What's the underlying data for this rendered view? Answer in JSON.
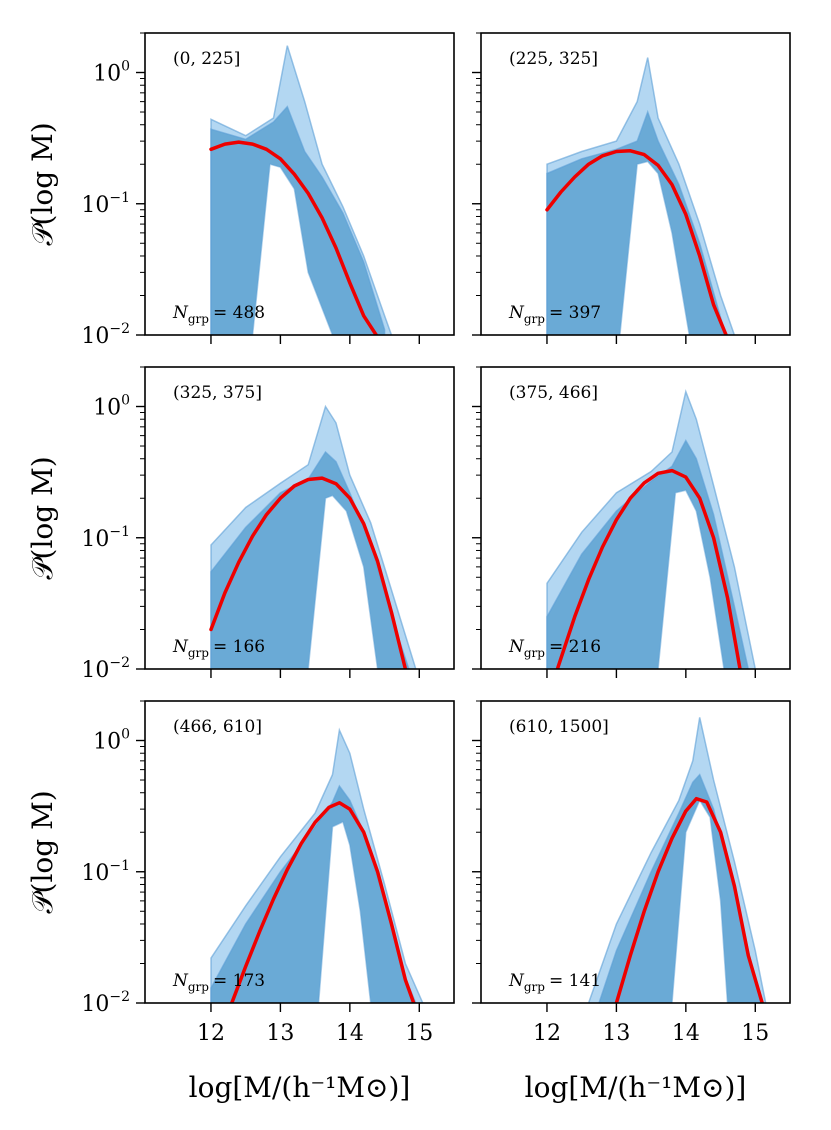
{
  "chart_data": {
    "type": "area",
    "layout": "3x2 grid of panels with shared x axis per column and shared y axis per row",
    "xlabel": "log[M/(h⁻¹M⊙)]",
    "ylabel": "𝒫(log M)",
    "xlim": [
      11.05,
      15.5
    ],
    "ylim": [
      0.01,
      2.0
    ],
    "yscale": "log",
    "xticks": [
      12,
      13,
      14,
      15
    ],
    "xtick_labels": [
      "12",
      "13",
      "14",
      "15"
    ],
    "yticks": [
      0.01,
      0.1,
      1.0
    ],
    "ytick_labels": [
      {
        "base": "10",
        "exp": "−2"
      },
      {
        "base": "10",
        "exp": "−1"
      },
      {
        "base": "10",
        "exp": "0"
      }
    ],
    "grid": false,
    "colors": {
      "outer_band": "#b3d7f2",
      "inner_band": "#6aaad6",
      "band_edge": "#5b9fd6",
      "fit_line": "#ee0000"
    },
    "panels": [
      {
        "range_label": "(0, 225]",
        "n_label": "N",
        "n_sub": "grp",
        "n_value": "= 488",
        "outer_band": {
          "x": [
            12.0,
            12.5,
            12.9,
            13.1,
            13.35,
            13.6,
            13.9,
            14.2,
            14.5,
            14.6
          ],
          "upper": [
            0.44,
            0.33,
            0.45,
            1.6,
            0.6,
            0.2,
            0.095,
            0.04,
            0.014,
            0.01
          ],
          "lower": [
            0.01,
            0.01,
            0.01,
            0.01,
            0.01,
            0.01,
            0.01,
            0.01,
            0.01,
            0.01
          ]
        },
        "inner_band": {
          "x": [
            12.0,
            12.5,
            12.9,
            13.1,
            13.35,
            13.6,
            13.9,
            14.2,
            14.5
          ],
          "upper": [
            0.37,
            0.31,
            0.42,
            0.55,
            0.25,
            0.16,
            0.085,
            0.036,
            0.011
          ],
          "lower": [
            0.01,
            0.01,
            0.01,
            0.01,
            0.01,
            0.01,
            0.01,
            0.01,
            0.01
          ]
        },
        "white_core": {
          "x": [
            12.6,
            12.85,
            13.0,
            13.2,
            13.4,
            13.75
          ],
          "upper": [
            0.01,
            0.2,
            0.19,
            0.13,
            0.03,
            0.01
          ]
        },
        "fit_line": {
          "x": [
            12.0,
            12.2,
            12.4,
            12.6,
            12.8,
            13.0,
            13.2,
            13.4,
            13.6,
            13.8,
            14.0,
            14.2,
            14.38
          ],
          "y": [
            0.26,
            0.285,
            0.295,
            0.285,
            0.26,
            0.22,
            0.168,
            0.12,
            0.078,
            0.046,
            0.025,
            0.014,
            0.01
          ]
        }
      },
      {
        "range_label": "(225, 325]",
        "n_label": "N",
        "n_sub": "grp",
        "n_value": "= 397",
        "outer_band": {
          "x": [
            12.0,
            12.5,
            13.0,
            13.3,
            13.45,
            13.6,
            13.9,
            14.2,
            14.5,
            14.7
          ],
          "upper": [
            0.2,
            0.25,
            0.3,
            0.6,
            1.3,
            0.45,
            0.2,
            0.07,
            0.02,
            0.01
          ],
          "lower": [
            0.01,
            0.01,
            0.01,
            0.01,
            0.01,
            0.01,
            0.01,
            0.01,
            0.01,
            0.01
          ]
        },
        "inner_band": {
          "x": [
            12.0,
            12.5,
            13.0,
            13.3,
            13.45,
            13.6,
            13.9,
            14.2,
            14.55
          ],
          "upper": [
            0.17,
            0.22,
            0.26,
            0.3,
            0.5,
            0.3,
            0.14,
            0.05,
            0.011
          ],
          "lower": [
            0.01,
            0.01,
            0.01,
            0.01,
            0.01,
            0.01,
            0.01,
            0.01,
            0.01
          ]
        },
        "white_core": {
          "x": [
            13.05,
            13.3,
            13.45,
            13.6,
            13.8,
            14.05
          ],
          "upper": [
            0.01,
            0.2,
            0.21,
            0.17,
            0.06,
            0.01
          ]
        },
        "fit_line": {
          "x": [
            12.0,
            12.2,
            12.4,
            12.6,
            12.8,
            13.0,
            13.2,
            13.4,
            13.6,
            13.8,
            14.0,
            14.2,
            14.4,
            14.58
          ],
          "y": [
            0.09,
            0.123,
            0.16,
            0.2,
            0.232,
            0.25,
            0.253,
            0.237,
            0.196,
            0.14,
            0.083,
            0.04,
            0.017,
            0.01
          ]
        }
      },
      {
        "range_label": "(325, 375]",
        "n_label": "N",
        "n_sub": "grp",
        "n_value": "= 166",
        "outer_band": {
          "x": [
            12.0,
            12.5,
            13.0,
            13.4,
            13.65,
            13.8,
            14.0,
            14.3,
            14.6,
            14.95
          ],
          "upper": [
            0.088,
            0.17,
            0.26,
            0.36,
            1.0,
            0.75,
            0.3,
            0.13,
            0.04,
            0.01
          ],
          "lower": [
            0.01,
            0.01,
            0.01,
            0.01,
            0.01,
            0.01,
            0.01,
            0.01,
            0.01,
            0.01
          ]
        },
        "inner_band": {
          "x": [
            12.0,
            12.5,
            13.0,
            13.4,
            13.65,
            13.8,
            14.0,
            14.3,
            14.6,
            14.85
          ],
          "upper": [
            0.055,
            0.12,
            0.22,
            0.28,
            0.45,
            0.38,
            0.22,
            0.09,
            0.025,
            0.01
          ],
          "lower": [
            0.01,
            0.01,
            0.01,
            0.01,
            0.01,
            0.01,
            0.01,
            0.01,
            0.01,
            0.01
          ]
        },
        "white_core": {
          "x": [
            13.4,
            13.65,
            13.75,
            13.95,
            14.2,
            14.4
          ],
          "upper": [
            0.01,
            0.2,
            0.21,
            0.16,
            0.06,
            0.01
          ]
        },
        "fit_line": {
          "x": [
            12.0,
            12.2,
            12.4,
            12.6,
            12.8,
            13.0,
            13.2,
            13.4,
            13.6,
            13.8,
            14.0,
            14.2,
            14.4,
            14.6,
            14.8
          ],
          "y": [
            0.02,
            0.038,
            0.065,
            0.103,
            0.15,
            0.2,
            0.248,
            0.278,
            0.285,
            0.258,
            0.2,
            0.128,
            0.066,
            0.027,
            0.01
          ]
        }
      },
      {
        "range_label": "(375, 466]",
        "n_label": "N",
        "n_sub": "grp",
        "n_value": "= 216",
        "outer_band": {
          "x": [
            12.0,
            12.5,
            13.0,
            13.5,
            13.8,
            14.0,
            14.15,
            14.4,
            14.7,
            15.0
          ],
          "upper": [
            0.045,
            0.11,
            0.22,
            0.32,
            0.45,
            1.3,
            0.8,
            0.25,
            0.06,
            0.01
          ],
          "lower": [
            0.01,
            0.01,
            0.01,
            0.01,
            0.01,
            0.01,
            0.01,
            0.01,
            0.01,
            0.01
          ]
        },
        "inner_band": {
          "x": [
            12.0,
            12.5,
            13.0,
            13.5,
            13.8,
            14.0,
            14.15,
            14.4,
            14.7,
            14.9
          ],
          "upper": [
            0.025,
            0.075,
            0.16,
            0.27,
            0.35,
            0.55,
            0.4,
            0.15,
            0.03,
            0.01
          ],
          "lower": [
            0.01,
            0.01,
            0.01,
            0.01,
            0.01,
            0.01,
            0.01,
            0.01,
            0.01,
            0.01
          ]
        },
        "white_core": {
          "x": [
            13.6,
            13.85,
            14.0,
            14.15,
            14.35,
            14.55
          ],
          "upper": [
            0.01,
            0.22,
            0.23,
            0.16,
            0.05,
            0.01
          ]
        },
        "fit_line": {
          "x": [
            12.15,
            12.4,
            12.6,
            12.8,
            13.0,
            13.2,
            13.4,
            13.6,
            13.8,
            14.0,
            14.2,
            14.4,
            14.6,
            14.78
          ],
          "y": [
            0.01,
            0.025,
            0.048,
            0.085,
            0.137,
            0.2,
            0.262,
            0.31,
            0.325,
            0.29,
            0.2,
            0.1,
            0.035,
            0.01
          ]
        }
      },
      {
        "range_label": "(466, 610]",
        "n_label": "N",
        "n_sub": "grp",
        "n_value": "= 173",
        "outer_band": {
          "x": [
            12.0,
            12.5,
            13.0,
            13.5,
            13.75,
            13.85,
            14.0,
            14.2,
            14.5,
            14.8,
            15.05
          ],
          "upper": [
            0.022,
            0.055,
            0.13,
            0.28,
            0.55,
            1.2,
            0.8,
            0.3,
            0.08,
            0.02,
            0.01
          ],
          "lower": [
            0.01,
            0.01,
            0.01,
            0.01,
            0.01,
            0.01,
            0.01,
            0.01,
            0.01,
            0.01,
            0.01
          ]
        },
        "inner_band": {
          "x": [
            12.0,
            12.5,
            13.0,
            13.5,
            13.75,
            13.85,
            14.0,
            14.2,
            14.5,
            14.75,
            14.95
          ],
          "upper": [
            0.013,
            0.04,
            0.1,
            0.22,
            0.34,
            0.45,
            0.35,
            0.2,
            0.06,
            0.018,
            0.01
          ],
          "lower": [
            0.01,
            0.01,
            0.01,
            0.01,
            0.01,
            0.01,
            0.01,
            0.01,
            0.01,
            0.01,
            0.01
          ]
        },
        "white_core": {
          "x": [
            13.55,
            13.75,
            13.9,
            14.0,
            14.15,
            14.3
          ],
          "upper": [
            0.01,
            0.22,
            0.24,
            0.16,
            0.05,
            0.01
          ]
        },
        "fit_line": {
          "x": [
            12.3,
            12.5,
            12.7,
            12.9,
            13.1,
            13.3,
            13.5,
            13.7,
            13.85,
            14.0,
            14.2,
            14.4,
            14.6,
            14.8,
            14.92
          ],
          "y": [
            0.01,
            0.019,
            0.035,
            0.062,
            0.104,
            0.164,
            0.238,
            0.31,
            0.335,
            0.3,
            0.2,
            0.1,
            0.04,
            0.015,
            0.01
          ]
        }
      },
      {
        "range_label": "(610, 1500]",
        "n_label": "N",
        "n_sub": "grp",
        "n_value": "= 141",
        "outer_band": {
          "x": [
            12.6,
            13.0,
            13.5,
            13.9,
            14.1,
            14.2,
            14.4,
            14.7,
            15.0,
            15.15
          ],
          "upper": [
            0.01,
            0.04,
            0.14,
            0.35,
            0.7,
            1.5,
            0.5,
            0.12,
            0.025,
            0.01
          ],
          "lower": [
            0.01,
            0.01,
            0.01,
            0.01,
            0.01,
            0.01,
            0.01,
            0.01,
            0.01,
            0.01
          ]
        },
        "inner_band": {
          "x": [
            12.75,
            13.0,
            13.5,
            13.9,
            14.1,
            14.2,
            14.4,
            14.7,
            15.0,
            15.08
          ],
          "upper": [
            0.01,
            0.025,
            0.1,
            0.28,
            0.48,
            0.55,
            0.3,
            0.07,
            0.015,
            0.01
          ],
          "lower": [
            0.01,
            0.01,
            0.01,
            0.01,
            0.01,
            0.01,
            0.01,
            0.01,
            0.01,
            0.01
          ]
        },
        "white_core": {
          "x": [
            13.8,
            14.0,
            14.2,
            14.35,
            14.5,
            14.6
          ],
          "upper": [
            0.01,
            0.2,
            0.35,
            0.26,
            0.06,
            0.01
          ]
        },
        "fit_line": {
          "x": [
            13.0,
            13.2,
            13.4,
            13.6,
            13.8,
            14.0,
            14.15,
            14.3,
            14.5,
            14.7,
            14.9,
            15.1
          ],
          "y": [
            0.01,
            0.023,
            0.05,
            0.1,
            0.18,
            0.29,
            0.36,
            0.34,
            0.2,
            0.078,
            0.023,
            0.01
          ]
        }
      }
    ]
  }
}
